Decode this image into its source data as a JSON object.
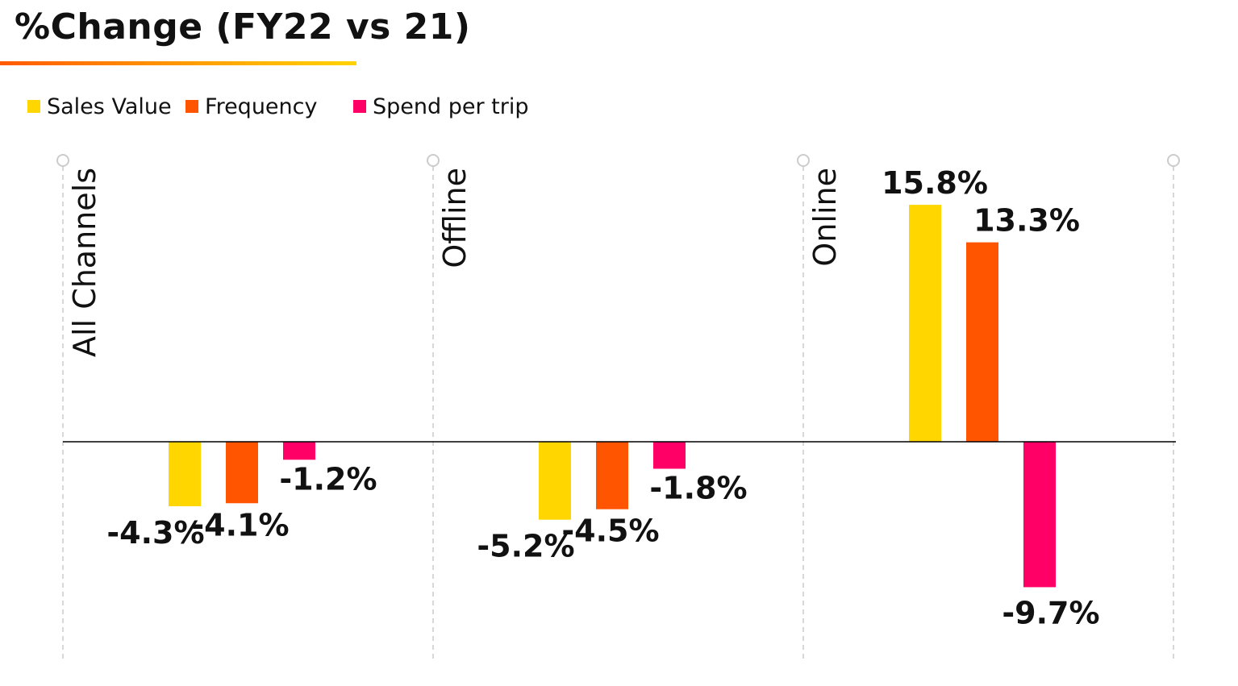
{
  "title": "%Change (FY22 vs 21)",
  "colors": {
    "sales_value": "#ffd600",
    "frequency": "#ff5500",
    "spend_per_trip": "#ff0066",
    "axis": "#000000",
    "divider": "#cccccc"
  },
  "chart_data": {
    "type": "bar",
    "title": "%Change (FY22 vs 21)",
    "categories": [
      "All Channels",
      "Offline",
      "Online"
    ],
    "series": [
      {
        "name": "Sales Value",
        "values": [
          -4.3,
          -5.2,
          15.8
        ],
        "labels": [
          "-4.3%",
          "-5.2%",
          "15.8%"
        ]
      },
      {
        "name": "Frequency",
        "values": [
          -4.1,
          -4.5,
          13.3
        ],
        "labels": [
          "-4.1%",
          "-4.5%",
          "13.3%"
        ]
      },
      {
        "name": "Spend per trip",
        "values": [
          -1.2,
          -1.8,
          -9.7
        ],
        "labels": [
          "-1.2%",
          "-1.8%",
          "-9.7%"
        ]
      }
    ],
    "unit": "%",
    "ylim": [
      -15,
      15
    ],
    "legend_position": "top-left",
    "grid": false
  }
}
